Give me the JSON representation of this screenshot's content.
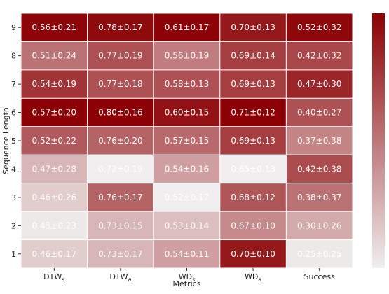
{
  "chart_data": {
    "type": "heatmap",
    "xlabel": "Metrics",
    "ylabel": "Sequence Length",
    "x_categories": [
      {
        "base": "DTW",
        "sub": "s"
      },
      {
        "base": "DTW",
        "sub": "a"
      },
      {
        "base": "WD",
        "sub": "s"
      },
      {
        "base": "WD",
        "sub": "a"
      },
      {
        "base": "Success",
        "sub": ""
      }
    ],
    "y_categories": [
      "9",
      "8",
      "7",
      "6",
      "5",
      "4",
      "3",
      "2",
      "1"
    ],
    "cells": [
      [
        {
          "label": "0.56±0.21",
          "intensity": 0.98
        },
        {
          "label": "0.78±0.17",
          "intensity": 0.96
        },
        {
          "label": "0.61±0.17",
          "intensity": 0.99
        },
        {
          "label": "0.70±0.13",
          "intensity": 0.9
        },
        {
          "label": "0.52±0.32",
          "intensity": 0.97
        }
      ],
      [
        {
          "label": "0.51±0.24",
          "intensity": 0.52
        },
        {
          "label": "0.77±0.19",
          "intensity": 0.66
        },
        {
          "label": "0.56±0.19",
          "intensity": 0.48
        },
        {
          "label": "0.69±0.14",
          "intensity": 0.74
        },
        {
          "label": "0.42±0.32",
          "intensity": 0.7
        }
      ],
      [
        {
          "label": "0.54±0.19",
          "intensity": 0.78
        },
        {
          "label": "0.77±0.18",
          "intensity": 0.66
        },
        {
          "label": "0.58±0.13",
          "intensity": 0.66
        },
        {
          "label": "0.69±0.13",
          "intensity": 0.74
        },
        {
          "label": "0.47±0.30",
          "intensity": 0.84
        }
      ],
      [
        {
          "label": "0.57±0.20",
          "intensity": 1.0
        },
        {
          "label": "0.80±0.16",
          "intensity": 1.0
        },
        {
          "label": "0.60±0.15",
          "intensity": 0.93
        },
        {
          "label": "0.71±0.12",
          "intensity": 1.0
        },
        {
          "label": "0.40±0.27",
          "intensity": 0.66
        }
      ],
      [
        {
          "label": "0.52±0.22",
          "intensity": 0.62
        },
        {
          "label": "0.76±0.20",
          "intensity": 0.58
        },
        {
          "label": "0.57±0.15",
          "intensity": 0.56
        },
        {
          "label": "0.69±0.13",
          "intensity": 0.74
        },
        {
          "label": "0.37±0.38",
          "intensity": 0.44
        }
      ],
      [
        {
          "label": "0.47±0.28",
          "intensity": 0.24
        },
        {
          "label": "0.72±0.19",
          "intensity": 0.0
        },
        {
          "label": "0.54±0.16",
          "intensity": 0.33
        },
        {
          "label": "0.65±0.13",
          "intensity": 0.0
        },
        {
          "label": "0.42±0.38",
          "intensity": 0.68
        }
      ],
      [
        {
          "label": "0.46±0.26",
          "intensity": 0.14
        },
        {
          "label": "0.76±0.17",
          "intensity": 0.58
        },
        {
          "label": "0.52±0.17",
          "intensity": 0.0
        },
        {
          "label": "0.68±0.12",
          "intensity": 0.64
        },
        {
          "label": "0.38±0.37",
          "intensity": 0.52
        }
      ],
      [
        {
          "label": "0.45±0.23",
          "intensity": 0.02
        },
        {
          "label": "0.73±0.15",
          "intensity": 0.24
        },
        {
          "label": "0.53±0.14",
          "intensity": 0.2
        },
        {
          "label": "0.67±0.10",
          "intensity": 0.42
        },
        {
          "label": "0.30±0.26",
          "intensity": 0.28
        }
      ],
      [
        {
          "label": "0.46±0.17",
          "intensity": 0.14
        },
        {
          "label": "0.73±0.17",
          "intensity": 0.24
        },
        {
          "label": "0.54±0.11",
          "intensity": 0.33
        },
        {
          "label": "0.70±0.10",
          "intensity": 0.9
        },
        {
          "label": "0.25±0.25",
          "intensity": 0.02
        }
      ]
    ],
    "colormap": {
      "low": "#f0eeee",
      "high": "#8b0004"
    },
    "colorbar": true,
    "grid": false
  }
}
